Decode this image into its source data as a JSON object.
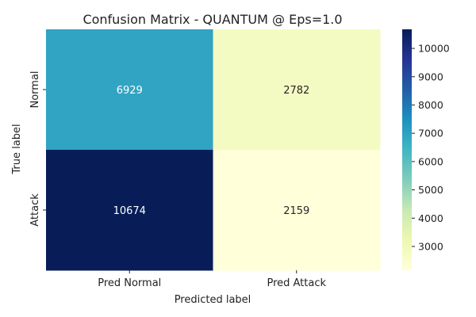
{
  "chart_data": {
    "type": "heatmap",
    "title": "Confusion Matrix - QUANTUM @ Eps=1.0",
    "xlabel": "Predicted label",
    "ylabel": "True label",
    "x_categories": [
      "Pred Normal",
      "Pred Attack"
    ],
    "y_categories": [
      "Normal",
      "Attack"
    ],
    "values": [
      [
        6929,
        2782
      ],
      [
        10674,
        2159
      ]
    ],
    "colormap": "YlGnBu",
    "colorbar": {
      "ticks": [
        3000,
        4000,
        5000,
        6000,
        7000,
        8000,
        9000,
        10000
      ],
      "range": [
        2159,
        10674
      ]
    },
    "colors": {
      "cmap_stops": [
        "#ffffd9",
        "#edf8b1",
        "#c7e9b4",
        "#7fcdbb",
        "#41b6c4",
        "#1d91c0",
        "#225ea8",
        "#253494",
        "#081d58"
      ]
    }
  }
}
